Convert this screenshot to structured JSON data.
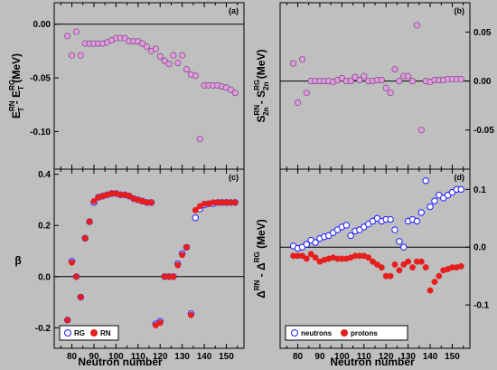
{
  "chart_data": [
    {
      "id": "a",
      "type": "scatter",
      "panel_label": "(a)",
      "ylabel": "E_T^RN - E_T^RG (MeV)",
      "ylim": [
        -0.135,
        0.02
      ],
      "xlim": [
        72,
        158
      ],
      "yticks": [
        "0.00",
        "-0.05",
        "-0.10"
      ],
      "tick_side": "left",
      "series": [
        {
          "marker": "filled",
          "color": "#e19be1",
          "x": [
            78,
            80,
            82,
            84,
            86,
            88,
            90,
            92,
            94,
            96,
            98,
            100,
            102,
            104,
            106,
            108,
            110,
            112,
            114,
            116,
            118,
            120,
            122,
            124,
            126,
            128,
            130,
            132,
            134,
            136,
            138,
            140,
            142,
            144,
            146,
            148,
            150,
            152,
            154
          ],
          "y": [
            -0.011,
            -0.029,
            -0.007,
            -0.029,
            -0.018,
            -0.018,
            -0.018,
            -0.018,
            -0.018,
            -0.017,
            -0.015,
            -0.013,
            -0.013,
            -0.013,
            -0.016,
            -0.016,
            -0.016,
            -0.018,
            -0.021,
            -0.025,
            -0.023,
            -0.03,
            -0.034,
            -0.037,
            -0.029,
            -0.036,
            -0.029,
            -0.042,
            -0.047,
            -0.048,
            -0.107,
            -0.057,
            -0.057,
            -0.057,
            -0.057,
            -0.058,
            -0.059,
            -0.061,
            -0.064
          ]
        }
      ]
    },
    {
      "id": "b",
      "type": "scatter",
      "panel_label": "(b)",
      "ylabel": "S_2n^RN - S_2n^RG (MeV)",
      "ylim": [
        -0.09,
        0.08
      ],
      "xlim": [
        72,
        158
      ],
      "yticks": [
        "0.05",
        "0.00",
        "-0.05"
      ],
      "tick_side": "right",
      "series": [
        {
          "marker": "filled",
          "color": "#e19be1",
          "x": [
            78,
            80,
            82,
            84,
            86,
            88,
            90,
            92,
            94,
            96,
            98,
            100,
            102,
            104,
            106,
            108,
            110,
            112,
            114,
            116,
            118,
            120,
            122,
            124,
            126,
            128,
            130,
            132,
            134,
            136,
            138,
            140,
            142,
            144,
            146,
            148,
            150,
            152,
            154
          ],
          "y": [
            0.018,
            -0.022,
            0.022,
            -0.012,
            0.0,
            0.0,
            0.0,
            0.0,
            0.0,
            -0.001,
            0.001,
            0.003,
            0.0,
            0.0,
            0.004,
            0.001,
            0.005,
            0.0,
            0.0,
            0.001,
            0.001,
            -0.007,
            -0.012,
            0.012,
            0.0,
            0.005,
            0.005,
            0.0,
            0.057,
            -0.05,
            0.0,
            -0.001,
            0.001,
            0.001,
            0.001,
            0.002,
            0.002,
            0.002,
            0.002
          ]
        }
      ]
    },
    {
      "id": "c",
      "type": "scatter",
      "panel_label": "(c)",
      "ylabel": "β",
      "ylim": [
        -0.28,
        0.42
      ],
      "xlim": [
        72,
        158
      ],
      "yticks": [
        "0.4",
        "0.2",
        "0.0",
        "-0.2"
      ],
      "xticks": [
        "80",
        "90",
        "100",
        "110",
        "120",
        "130",
        "140",
        "150"
      ],
      "tick_side": "left",
      "legend": [
        "RG",
        "RN"
      ],
      "series": [
        {
          "name": "RG",
          "marker": "open",
          "color": "#1a1aff",
          "x": [
            78,
            80,
            82,
            84,
            86,
            88,
            90,
            92,
            94,
            96,
            98,
            100,
            102,
            104,
            106,
            108,
            110,
            112,
            114,
            116,
            118,
            120,
            122,
            124,
            126,
            128,
            130,
            132,
            134,
            136,
            138,
            140,
            142,
            144,
            146,
            148,
            150,
            152,
            154
          ],
          "y": [
            -0.17,
            0.06,
            0.0,
            -0.08,
            0.15,
            0.215,
            0.29,
            0.31,
            0.315,
            0.32,
            0.325,
            0.325,
            0.32,
            0.32,
            0.315,
            0.305,
            0.3,
            0.295,
            0.29,
            0.29,
            -0.185,
            -0.175,
            0.0,
            0.0,
            0.0,
            0.05,
            0.09,
            0.115,
            -0.145,
            0.23,
            0.265,
            0.28,
            0.285,
            0.285,
            0.29,
            0.29,
            0.29,
            0.29,
            0.29
          ]
        },
        {
          "name": "RN",
          "marker": "filled",
          "color": "#e61e1e",
          "x": [
            78,
            80,
            82,
            84,
            86,
            88,
            90,
            92,
            94,
            96,
            98,
            100,
            102,
            104,
            106,
            108,
            110,
            112,
            114,
            116,
            118,
            120,
            122,
            124,
            126,
            128,
            130,
            132,
            134,
            136,
            138,
            140,
            142,
            144,
            146,
            148,
            150,
            152,
            154
          ],
          "y": [
            -0.17,
            0.055,
            0.0,
            -0.08,
            0.15,
            0.215,
            0.295,
            0.31,
            0.315,
            0.32,
            0.325,
            0.325,
            0.32,
            0.32,
            0.315,
            0.305,
            0.3,
            0.295,
            0.29,
            0.29,
            -0.19,
            -0.18,
            0.0,
            0.0,
            0.0,
            0.045,
            0.085,
            0.115,
            -0.15,
            0.26,
            0.275,
            0.285,
            0.285,
            0.29,
            0.29,
            0.29,
            0.29,
            0.29,
            0.29
          ]
        }
      ]
    },
    {
      "id": "d",
      "type": "scatter",
      "panel_label": "(d)",
      "ylabel": "Δ^RN - Δ^RG (MeV)",
      "ylim": [
        -0.175,
        0.135
      ],
      "xlim": [
        72,
        158
      ],
      "yticks": [
        "0.1",
        "0.0",
        "-0.1"
      ],
      "xticks": [
        "80",
        "90",
        "100",
        "110",
        "120",
        "130",
        "140",
        "150"
      ],
      "tick_side": "right",
      "legend": [
        "neutrons",
        "protons"
      ],
      "series": [
        {
          "name": "neutrons",
          "marker": "open",
          "color": "#1a1aff",
          "x": [
            78,
            80,
            82,
            84,
            86,
            88,
            90,
            92,
            94,
            96,
            98,
            100,
            102,
            104,
            106,
            108,
            110,
            112,
            114,
            116,
            118,
            120,
            122,
            124,
            126,
            128,
            130,
            132,
            134,
            136,
            138,
            140,
            142,
            144,
            146,
            148,
            150,
            152,
            154
          ],
          "y": [
            0.002,
            -0.002,
            0.0,
            0.005,
            0.012,
            0.008,
            0.015,
            0.018,
            0.02,
            0.025,
            0.03,
            0.035,
            0.038,
            0.02,
            0.028,
            0.03,
            0.035,
            0.04,
            0.045,
            0.05,
            0.045,
            0.048,
            0.048,
            0.03,
            0.01,
            0.0,
            0.045,
            0.048,
            0.045,
            0.06,
            0.115,
            0.07,
            0.08,
            0.09,
            0.085,
            0.09,
            0.095,
            0.1,
            0.1
          ]
        },
        {
          "name": "protons",
          "marker": "filled",
          "color": "#e61e1e",
          "x": [
            78,
            80,
            82,
            84,
            86,
            88,
            90,
            92,
            94,
            96,
            98,
            100,
            102,
            104,
            106,
            108,
            110,
            112,
            114,
            116,
            118,
            120,
            122,
            124,
            126,
            128,
            130,
            132,
            134,
            136,
            138,
            140,
            142,
            144,
            146,
            148,
            150,
            152,
            154
          ],
          "y": [
            -0.015,
            -0.015,
            -0.015,
            -0.02,
            -0.012,
            -0.018,
            -0.025,
            -0.022,
            -0.02,
            -0.018,
            -0.02,
            -0.02,
            -0.02,
            -0.018,
            -0.015,
            -0.015,
            -0.015,
            -0.018,
            -0.025,
            -0.03,
            -0.035,
            -0.05,
            -0.05,
            -0.03,
            -0.04,
            -0.03,
            -0.025,
            -0.035,
            -0.025,
            -0.025,
            -0.035,
            -0.075,
            -0.06,
            -0.05,
            -0.04,
            -0.038,
            -0.035,
            -0.035,
            -0.033
          ]
        }
      ]
    }
  ],
  "xlabel": "Neutron number"
}
